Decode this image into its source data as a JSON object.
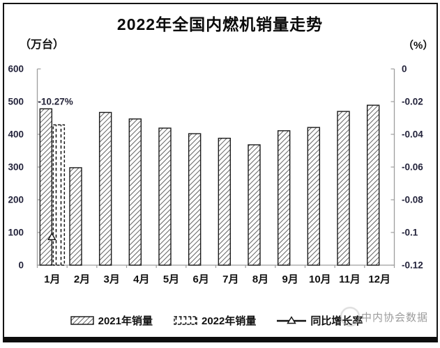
{
  "chart_data": {
    "type": "bar",
    "title": "2022年全国内燃机销量走势",
    "categories": [
      "1月",
      "2月",
      "3月",
      "4月",
      "5月",
      "6月",
      "7月",
      "8月",
      "9月",
      "10月",
      "11月",
      "12月"
    ],
    "series": [
      {
        "name": "2021年销量",
        "kind": "bar",
        "pattern": "diagonal-hatch",
        "axis": "left",
        "values": [
          478,
          298,
          467,
          447,
          419,
          402,
          388,
          368,
          411,
          421,
          470,
          489
        ]
      },
      {
        "name": "2022年销量",
        "kind": "bar",
        "pattern": "dashed-fill",
        "axis": "left",
        "values": [
          429,
          null,
          null,
          null,
          null,
          null,
          null,
          null,
          null,
          null,
          null,
          null
        ]
      },
      {
        "name": "同比增长率",
        "kind": "line",
        "marker": "triangle",
        "axis": "right",
        "values": [
          -0.1027,
          null,
          null,
          null,
          null,
          null,
          null,
          null,
          null,
          null,
          null,
          null
        ]
      }
    ],
    "left_axis": {
      "unit_label": "（万台）",
      "min": 0,
      "max": 600,
      "step": 100,
      "ticks": [
        "0",
        "100",
        "200",
        "300",
        "400",
        "500",
        "600"
      ]
    },
    "right_axis": {
      "unit_label": "（%）",
      "min": -0.12,
      "max": 0,
      "step": 0.02,
      "ticks": [
        "0",
        "-0.02",
        "-0.04",
        "-0.06",
        "-0.08",
        "-0.1",
        "-0.12"
      ]
    },
    "annotation": {
      "text": "-10.27%",
      "series": "同比增长率",
      "category": "1月"
    },
    "grid": false,
    "legend_position": "bottom"
  },
  "watermark": {
    "text": "中内协会数据"
  },
  "colors": {
    "frame_border": "#141414",
    "axis_line": "#9e9e9e",
    "tick_label": "#23233b",
    "text": "#111111",
    "bar_outline": "#1a1a1a",
    "hatch_line": "#4f4f4f",
    "annotation": "#26263a",
    "watermark": "#9c9c9c"
  }
}
